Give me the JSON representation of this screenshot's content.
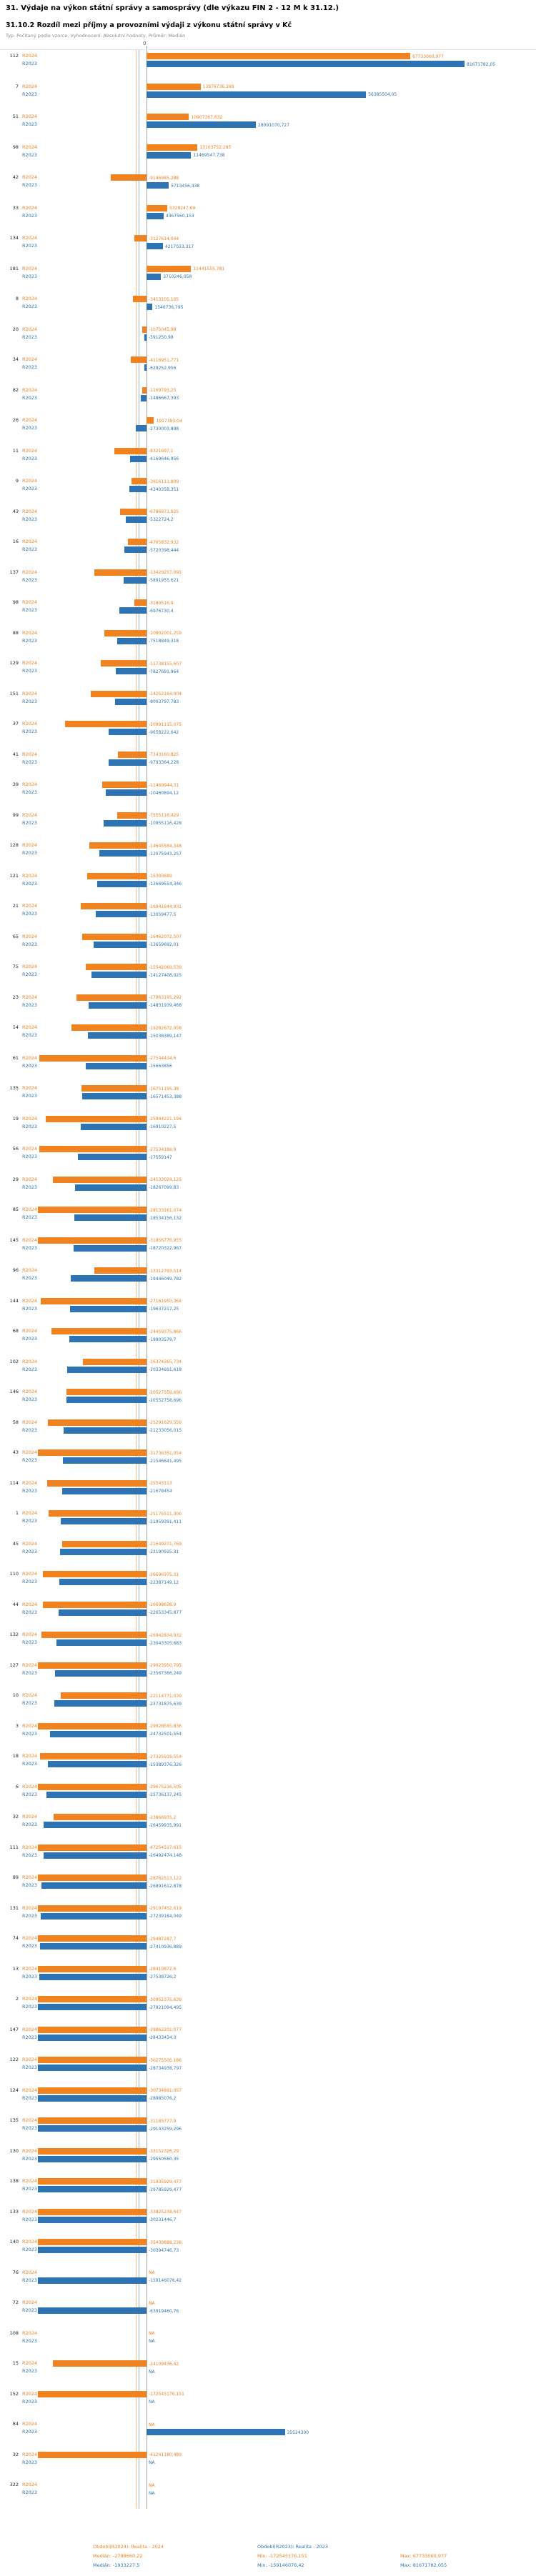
{
  "header": {
    "title": "31. Výdaje na výkon státní správy a samosprávy (dle výkazu FIN 2 - 12 M k 31.12.)",
    "subtitle": "31.10.2 Rozdíl mezi příjmy a provozními výdaji z výkonu státní správy v Kč",
    "meta": "Typ: Počítaný podle vzorce, Vyhodnocení: Absolutní hodnoty, Průměr: Medián"
  },
  "axis": {
    "zero_label": "0"
  },
  "series": {
    "r2024": {
      "label": "R2024",
      "color": "#F08220"
    },
    "r2023": {
      "label": "R2023",
      "color": "#2E74B5"
    }
  },
  "chart_data": {
    "type": "bar",
    "orientation": "horizontal",
    "sorted_by": "R2023 value descending, rows with NA at end",
    "na_label": "NA",
    "unit": "Kč",
    "medians": {
      "r2024": -2788660.22,
      "r2023": -1933227.5
    },
    "stats": {
      "r2024": {
        "median": -2788660.22,
        "min": -172545176.151,
        "max": 67733060.977
      },
      "r2023": {
        "median": -1933227.5,
        "min": -159146076.42,
        "max": 81671782.055
      }
    },
    "rows": [
      [
        "112",
        67733060.977,
        81671782.05
      ],
      [
        "7",
        13876736.369,
        56385504.05
      ],
      [
        "51",
        10907367.632,
        28091070.727
      ],
      [
        "98",
        13103752.285,
        11469547.738
      ],
      [
        "42",
        -9146985.288,
        5713456.438
      ],
      [
        "33",
        5329247.69,
        4367560.153
      ],
      [
        "134",
        -3127614.044,
        4217033.317
      ],
      [
        "181",
        11441555.781,
        3710246.058
      ],
      [
        "8",
        -3413105.105,
        1546736.795
      ],
      [
        "20",
        -1075045.98,
        -591250.99
      ],
      [
        "34",
        -4116951.771,
        -629252.956
      ],
      [
        "82",
        -1169793.25,
        -1486667.393
      ],
      [
        "26",
        1917393.04,
        -2730003.898
      ],
      [
        "11",
        -8321697.1,
        -4169646.956
      ],
      [
        "9",
        -3916111.809,
        -4340358.351
      ],
      [
        "43",
        -6786971.925,
        -5322724.2
      ],
      [
        "16",
        -4705832.932,
        -5720398.444
      ],
      [
        "137",
        -13429257.095,
        -5891955.621
      ],
      [
        "98",
        -3180516.9,
        -6976730.4
      ],
      [
        "88",
        -10802001.259,
        -7518849.318
      ],
      [
        "129",
        -11738155.607,
        -7827691.964
      ],
      [
        "151",
        -14252164.004,
        -8003797.783
      ],
      [
        "37",
        -20991115.075,
        -9658222.642
      ],
      [
        "41",
        -7343160.825,
        -9793364.228
      ],
      [
        "39",
        -11469944.31,
        -10460894.12
      ],
      [
        "99",
        -7555116.429,
        -10955116.428
      ],
      [
        "128",
        -14645584.348,
        -12075943.257
      ],
      [
        "121",
        -15303689.0,
        -12669554.346
      ],
      [
        "21",
        -16941644.931,
        -13059477.5
      ],
      [
        "65",
        -16462072.507,
        -13659692.01
      ],
      [
        "75",
        -15542069.539,
        -14127408.025
      ],
      [
        "23",
        -17963195.292,
        -14831939.468
      ],
      [
        "14",
        -19282672.058,
        -15038389.147
      ],
      [
        "61",
        -27544434.6,
        -15663856.0
      ],
      [
        "135",
        -16751195.38,
        -16571453.388
      ],
      [
        "19",
        -25944221.194,
        -16910227.5
      ],
      [
        "56",
        -27534186.9,
        -17559147.0
      ],
      [
        "29",
        -24133024.125,
        -18267099.83
      ],
      [
        "85",
        -28133161.074,
        -18534156.132
      ],
      [
        "145",
        -31956776.955,
        -18720322.967
      ],
      [
        "96",
        -13312793.514,
        -19446049.782
      ],
      [
        "144",
        -27161950.364,
        -19637217.25
      ],
      [
        "68",
        -24459375.866,
        -19903579.7
      ],
      [
        "102",
        -16374365.734,
        -20334691.618
      ],
      [
        "146",
        -20527559.696,
        -20552758.696
      ],
      [
        "58",
        -25291629.559,
        -21233056.015
      ],
      [
        "43",
        -31736351.054,
        -21546641.495
      ],
      [
        "114",
        -25543113.0,
        -21678454.0
      ],
      [
        "1",
        -25175511.306,
        -21959391.411
      ],
      [
        "45",
        -21649271.769,
        -22190925.31
      ],
      [
        "110",
        -26696975.31,
        -22387149.12
      ],
      [
        "44",
        -26698638.9,
        -22653345.877
      ],
      [
        "132",
        -26942834.932,
        -23043305.683
      ],
      [
        "127",
        -29023950.795,
        -23567366.249
      ],
      [
        "10",
        -22114771.039,
        -23731875.639
      ],
      [
        "3",
        -29928585.836,
        -24732501.554
      ],
      [
        "18",
        -27325919.554,
        -25389376.326
      ],
      [
        "6",
        -29675216.505,
        -25736137.245
      ],
      [
        "32",
        -23866935.2,
        -26459935.991
      ],
      [
        "111",
        -47254517.615,
        -26492474.148
      ],
      [
        "89",
        -28762513.122,
        -26891612.878
      ],
      [
        "131",
        -29197452.619,
        -27239184.049
      ],
      [
        "74",
        -29487287.7,
        -27410936.889
      ],
      [
        "13",
        -28419872.6,
        -27538726.2
      ],
      [
        "2",
        -30952375.639,
        -27921094.495
      ],
      [
        "147",
        -29862201.077,
        -28433434.3
      ],
      [
        "122",
        -30275506.186,
        -28734938.797
      ],
      [
        "124",
        -30734891.057,
        -28985076.2
      ],
      [
        "135",
        -31185777.9,
        -29143259.296
      ],
      [
        "130",
        -33152326.29,
        -29550560.35
      ],
      [
        "138",
        -31935929.477,
        -29785929.477
      ],
      [
        "133",
        -33825238.647,
        -30231446.7
      ],
      [
        "140",
        -35439888.238,
        -30394746.73
      ],
      [
        "76",
        null,
        -159146076.42
      ],
      [
        "72",
        null,
        -63919460.76
      ],
      [
        "108",
        null,
        null
      ],
      [
        "15",
        -24109476.42,
        null
      ],
      [
        "152",
        -172545176.151,
        null
      ],
      [
        "84",
        null,
        35524300
      ],
      [
        "32",
        -41241180.489,
        null
      ],
      [
        "322",
        null,
        null
      ]
    ]
  },
  "footer": {
    "r2024": {
      "period": "Období(R2024): Realita - 2024",
      "median": "Medián: -2788660,22",
      "min": "Min: -172545176,151",
      "max": "Max: 67733060,977"
    },
    "r2023": {
      "period": "Období(R2023): Realita - 2023",
      "median": "Medián: -1933227,5",
      "min": "Min: -159146076,42",
      "max": "Max: 81671782,055"
    }
  }
}
